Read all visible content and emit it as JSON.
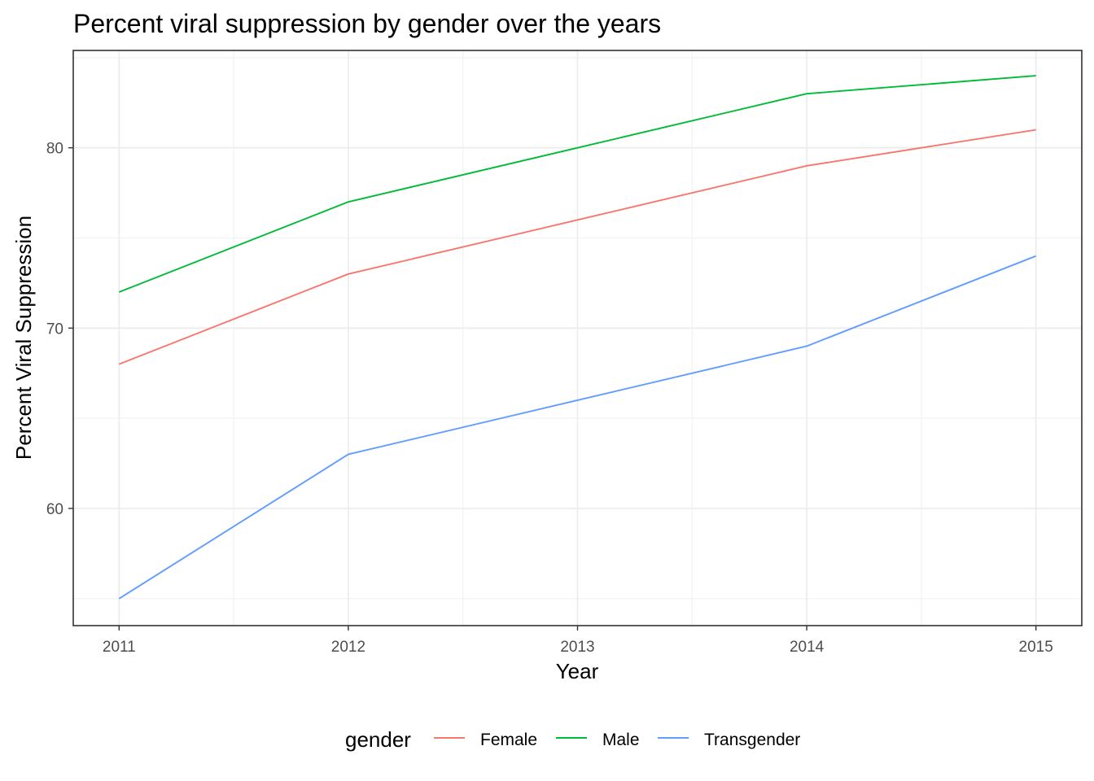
{
  "chart_data": {
    "type": "line",
    "title": "Percent viral suppression by gender over the years",
    "xlabel": "Year",
    "ylabel": "Percent Viral Suppression",
    "x": [
      2011,
      2012,
      2013,
      2014,
      2015
    ],
    "x_tick_labels": [
      "2011",
      "2012",
      "2013",
      "2014",
      "2015"
    ],
    "y_tick_labels": [
      "60",
      "70",
      "80"
    ],
    "xlim": [
      2010.8,
      2015.2
    ],
    "ylim": [
      53.5,
      85.4
    ],
    "grid": true,
    "legend": {
      "title": "gender",
      "position": "bottom"
    },
    "series": [
      {
        "name": "Female",
        "color": "#F8766D",
        "values": [
          68,
          73,
          76,
          79,
          81
        ]
      },
      {
        "name": "Male",
        "color": "#00BA38",
        "values": [
          72,
          77,
          80,
          83,
          84
        ]
      },
      {
        "name": "Transgender",
        "color": "#619CFF",
        "values": [
          55,
          63,
          66,
          69,
          74
        ]
      }
    ]
  }
}
